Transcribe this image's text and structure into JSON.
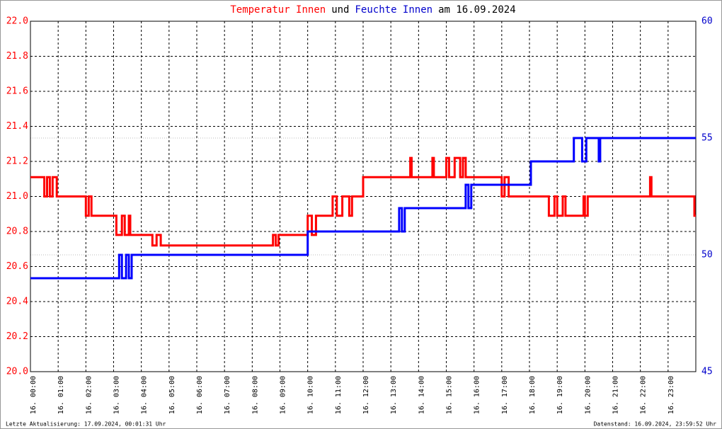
{
  "chart_data": {
    "type": "line",
    "title_parts": [
      {
        "text": "Temperatur Innen",
        "color": "#ff0000"
      },
      {
        "text": "und",
        "color": "#000000"
      },
      {
        "text": "Feuchte Innen",
        "color": "#0000cc"
      },
      {
        "text": "am 16.09.2024",
        "color": "#000000"
      }
    ],
    "footer_left": "Letzte Aktualisierung: 17.09.2024, 00:01:31 Uhr",
    "footer_right": "Datenstand: 16.09.2024, 23:59:52 Uhr",
    "xlim": [
      0,
      24
    ],
    "xticks": [
      {
        "value": 0,
        "label": "16. 00:00"
      },
      {
        "value": 1,
        "label": "16. 01:00"
      },
      {
        "value": 2,
        "label": "16. 02:00"
      },
      {
        "value": 3,
        "label": "16. 03:00"
      },
      {
        "value": 4,
        "label": "16. 04:00"
      },
      {
        "value": 5,
        "label": "16. 05:00"
      },
      {
        "value": 6,
        "label": "16. 06:00"
      },
      {
        "value": 7,
        "label": "16. 07:00"
      },
      {
        "value": 8,
        "label": "16. 08:00"
      },
      {
        "value": 9,
        "label": "16. 09:00"
      },
      {
        "value": 10,
        "label": "16. 10:00"
      },
      {
        "value": 11,
        "label": "16. 11:00"
      },
      {
        "value": 12,
        "label": "16. 12:00"
      },
      {
        "value": 13,
        "label": "16. 13:00"
      },
      {
        "value": 14,
        "label": "16. 14:00"
      },
      {
        "value": 15,
        "label": "16. 15:00"
      },
      {
        "value": 16,
        "label": "16. 16:00"
      },
      {
        "value": 17,
        "label": "16. 17:00"
      },
      {
        "value": 18,
        "label": "16. 18:00"
      },
      {
        "value": 19,
        "label": "16. 19:00"
      },
      {
        "value": 20,
        "label": "16. 20:00"
      },
      {
        "value": 21,
        "label": "16. 21:00"
      },
      {
        "value": 22,
        "label": "16. 22:00"
      },
      {
        "value": 23,
        "label": "16. 23:00"
      }
    ],
    "ylim": [
      20,
      22
    ],
    "yticks": [
      {
        "value": 20,
        "label": "20.0"
      },
      {
        "value": 20.2,
        "label": "20.2"
      },
      {
        "value": 20.4,
        "label": "20.4"
      },
      {
        "value": 20.6,
        "label": "20.6"
      },
      {
        "value": 20.8,
        "label": "20.8"
      },
      {
        "value": 21,
        "label": "21.0"
      },
      {
        "value": 21.2,
        "label": "21.2"
      },
      {
        "value": 21.4,
        "label": "21.4"
      },
      {
        "value": 21.6,
        "label": "21.6"
      },
      {
        "value": 21.8,
        "label": "21.8"
      },
      {
        "value": 22,
        "label": "22.0"
      }
    ],
    "y_axis_color": "#ff0000",
    "y2lim": [
      45,
      60
    ],
    "y2ticks": [
      45,
      50,
      55,
      60
    ],
    "y2_axis_color": "#0000cc",
    "grid": true,
    "series": [
      {
        "name": "Temperatur Innen",
        "color": "#ff0000",
        "x": [
          0,
          0.5,
          0.5,
          0.6,
          0.6,
          0.7,
          0.7,
          0.8,
          0.8,
          0.95,
          0.95,
          2.0,
          2.0,
          2.1,
          2.1,
          2.2,
          2.2,
          3.1,
          3.1,
          3.3,
          3.3,
          3.4,
          3.4,
          3.55,
          3.55,
          3.6,
          3.6,
          4.4,
          4.4,
          4.55,
          4.55,
          4.7,
          4.7,
          8.75,
          8.75,
          8.85,
          8.85,
          8.95,
          8.95,
          10.0,
          10.0,
          10.15,
          10.15,
          10.3,
          10.3,
          10.9,
          10.9,
          11.05,
          11.05,
          11.25,
          11.25,
          11.5,
          11.5,
          11.6,
          11.6,
          12.0,
          12.0,
          13.7,
          13.7,
          13.75,
          13.75,
          14.5,
          14.5,
          14.55,
          14.55,
          15.0,
          15.0,
          15.1,
          15.1,
          15.3,
          15.3,
          15.5,
          15.5,
          15.6,
          15.6,
          15.7,
          15.7,
          17.0,
          17.0,
          17.1,
          17.1,
          17.25,
          17.25,
          18.7,
          18.7,
          18.9,
          18.9,
          19.0,
          19.0,
          19.2,
          19.2,
          19.3,
          19.3,
          19.95,
          19.95,
          20.0,
          20.0,
          20.1,
          20.1,
          22.35,
          22.35,
          22.4,
          22.4,
          23.95,
          23.95,
          24
        ],
        "values": [
          21.11,
          21.11,
          21.0,
          21.0,
          21.11,
          21.11,
          21.0,
          21.0,
          21.11,
          21.11,
          21.0,
          21.0,
          20.89,
          20.89,
          21.0,
          21.0,
          20.89,
          20.89,
          20.78,
          20.78,
          20.89,
          20.89,
          20.78,
          20.78,
          20.89,
          20.89,
          20.78,
          20.78,
          20.72,
          20.72,
          20.78,
          20.78,
          20.72,
          20.72,
          20.78,
          20.78,
          20.72,
          20.72,
          20.78,
          20.78,
          20.89,
          20.89,
          20.78,
          20.78,
          20.89,
          20.89,
          21.0,
          21.0,
          20.89,
          20.89,
          21.0,
          21.0,
          20.89,
          20.89,
          21.0,
          21.0,
          21.11,
          21.11,
          21.22,
          21.22,
          21.11,
          21.11,
          21.22,
          21.22,
          21.11,
          21.11,
          21.22,
          21.22,
          21.11,
          21.11,
          21.22,
          21.22,
          21.11,
          21.11,
          21.22,
          21.22,
          21.11,
          21.11,
          21.0,
          21.0,
          21.11,
          21.11,
          21.0,
          21.0,
          20.89,
          20.89,
          21.0,
          21.0,
          20.89,
          20.89,
          21.0,
          21.0,
          20.89,
          20.89,
          21.0,
          21.0,
          20.89,
          20.89,
          21.0,
          21.0,
          21.11,
          21.11,
          21.0,
          21.0,
          20.89,
          20.89
        ]
      },
      {
        "name": "Feuchte Innen",
        "color": "#0000ff",
        "axis": "y2",
        "x": [
          0,
          3.2,
          3.2,
          3.3,
          3.3,
          3.45,
          3.45,
          3.55,
          3.55,
          3.65,
          3.65,
          10.0,
          10.0,
          13.3,
          13.3,
          13.4,
          13.4,
          13.5,
          13.5,
          15.7,
          15.7,
          15.8,
          15.8,
          15.9,
          15.9,
          18.05,
          18.05,
          19.6,
          19.6,
          19.9,
          19.9,
          20.05,
          20.05,
          20.5,
          20.5,
          20.55,
          20.55,
          24
        ],
        "values": [
          49,
          49,
          50,
          50,
          49,
          49,
          50,
          50,
          49,
          49,
          50,
          50,
          51,
          51,
          52,
          52,
          51,
          51,
          52,
          52,
          53,
          53,
          52,
          52,
          53,
          53,
          54,
          54,
          55,
          55,
          54,
          54,
          55,
          55,
          54,
          54,
          55,
          55
        ]
      }
    ]
  }
}
